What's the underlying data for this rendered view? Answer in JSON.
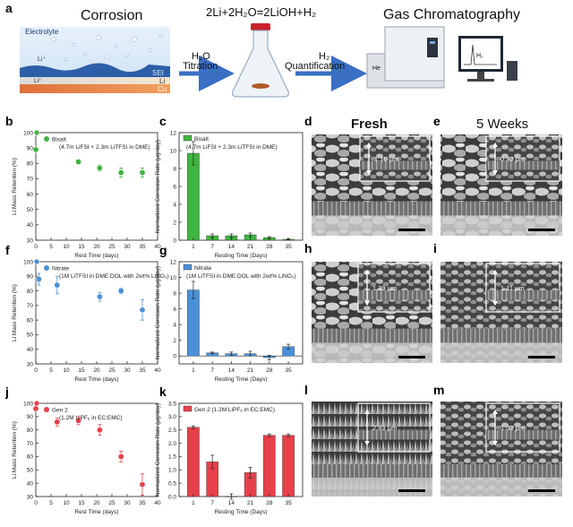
{
  "panel_labels": {
    "a": "a",
    "b": "b",
    "c": "c",
    "d": "d",
    "e": "e",
    "f": "f",
    "g": "g",
    "h": "h",
    "i": "i",
    "j": "j",
    "k": "k",
    "l": "l",
    "m": "m"
  },
  "schematic": {
    "corrosion_title": "Corrosion",
    "electrolyte": "Electrolyte",
    "li_ion": "Li⁺",
    "li0": "Li⁰",
    "sei": "SEI",
    "li": "Li",
    "cu": "Cu",
    "reaction": "2Li+2H₂O=2LiOH+H₂",
    "h2o": "H₂O",
    "titration": "Titration",
    "h2": "H₂",
    "quantification": "Quantification",
    "gc_title": "Gas Chromatography",
    "he": "He",
    "screen_h2": "H₂"
  },
  "sem": {
    "fresh": "Fresh",
    "five_weeks": "5 Weeks",
    "d_thickness": "1.16 μm",
    "e_thickness": "0.92 μm",
    "h_thickness": "1.39 μm",
    "i_thickness": "1.11 μm",
    "l_thickness": "2.93 μm",
    "m_thickness": "1.02 μm"
  },
  "colors": {
    "bisalt": "#3fb53f",
    "nitrate": "#4a90d9",
    "gen2": "#e8404a",
    "arrow": "#3a6fc4"
  },
  "chart_data": [
    {
      "id": "b",
      "type": "scatter",
      "legend": "Bisalt",
      "legend_sub": "(4.7m LiFSI + 2.3m LiTFSI in DME)",
      "xlabel": "Rest Time (days)",
      "ylabel": "Li Mass Retention (%)",
      "xlim": [
        0,
        40
      ],
      "ylim": [
        30,
        100
      ],
      "xticks": [
        "0",
        "5",
        "10",
        "15",
        "20",
        "25",
        "30",
        "35",
        "40"
      ],
      "yticks": [
        "30",
        "40",
        "50",
        "60",
        "70",
        "80",
        "90",
        "100"
      ],
      "x": [
        0,
        14,
        21,
        28,
        35
      ],
      "y": [
        89,
        81,
        77,
        74,
        74
      ],
      "err": [
        1,
        1,
        2,
        3,
        3
      ],
      "initial_point": 100
    },
    {
      "id": "c",
      "type": "bar",
      "legend": "Bisalt",
      "legend_sub": "(4.7m LiFSI + 2.3m LiTFSI in DME)",
      "xlabel": "Resting Time (Days)",
      "ylabel": "Normalized Corrosion Rate (μg/day)",
      "categories": [
        "1",
        "7",
        "14",
        "21",
        "28",
        "35"
      ],
      "values": [
        9.7,
        0.5,
        0.5,
        0.6,
        0.3,
        0.1
      ],
      "err": [
        1.3,
        0.2,
        0.2,
        0.2,
        0.1,
        0.05
      ],
      "ylim": [
        0,
        12
      ],
      "yticks": [
        "0",
        "2",
        "4",
        "6",
        "8",
        "10",
        "12"
      ]
    },
    {
      "id": "f",
      "type": "scatter",
      "legend": "Nitrate",
      "legend_sub": "(1M LiTFSI in DME:DOL with 2wt% LiNO₃)",
      "xlabel": "Rest Time (days)",
      "ylabel": "Li Mass Retention (%)",
      "xlim": [
        0,
        40
      ],
      "ylim": [
        30,
        100
      ],
      "xticks": [
        "0",
        "5",
        "10",
        "15",
        "20",
        "25",
        "30",
        "35",
        "40"
      ],
      "yticks": [
        "30",
        "40",
        "50",
        "60",
        "70",
        "80",
        "90",
        "100"
      ],
      "x": [
        1,
        7,
        21,
        28,
        35
      ],
      "y": [
        88,
        84,
        76,
        80,
        67
      ],
      "err": [
        4,
        6,
        3,
        2,
        7
      ],
      "initial_point": 100
    },
    {
      "id": "g",
      "type": "bar",
      "legend": "Nitrate",
      "legend_sub": "(1M LiTFSI in DME:DOL with 2wt% LiNO₃)",
      "xlabel": "Resting Time (Days)",
      "ylabel": "Normalized Corrosion Rate (μg/day)",
      "categories": [
        "1",
        "7",
        "14",
        "21",
        "28",
        "35"
      ],
      "values": [
        8.4,
        0.4,
        0.3,
        0.3,
        -0.2,
        1.2
      ],
      "err": [
        1.1,
        0.1,
        0.2,
        0.3,
        0.3,
        0.3
      ],
      "ylim": [
        -1,
        12
      ],
      "yticks": [
        "0",
        "2",
        "4",
        "6",
        "8",
        "10",
        "12"
      ]
    },
    {
      "id": "j",
      "type": "scatter",
      "legend": "Gen 2",
      "legend_sub": "(1.2M LiPF₆ in EC:EMC)",
      "xlabel": "Rest Time (days)",
      "ylabel": "Li Mass Retention (%)",
      "xlim": [
        0,
        40
      ],
      "ylim": [
        30,
        100
      ],
      "xticks": [
        "0",
        "5",
        "10",
        "15",
        "20",
        "25",
        "30",
        "35",
        "40"
      ],
      "yticks": [
        "30",
        "40",
        "50",
        "60",
        "70",
        "80",
        "90",
        "100"
      ],
      "x": [
        0,
        7,
        14,
        21,
        28,
        35
      ],
      "y": [
        96,
        86,
        87,
        80,
        60,
        39
      ],
      "err": [
        1,
        3,
        3,
        4,
        4,
        8
      ],
      "initial_point": 100
    },
    {
      "id": "k",
      "type": "bar",
      "legend": "Gen 2 (1.2M LiPF₆ in EC:EMC)",
      "xlabel": "Resting Time (Days)",
      "ylabel": "Normalized Corrosion Rate (μg/day)",
      "categories": [
        "1",
        "7",
        "14",
        "21",
        "28",
        "35"
      ],
      "values": [
        2.6,
        1.3,
        0.0,
        0.9,
        2.3,
        2.3
      ],
      "err": [
        0.05,
        0.25,
        0.1,
        0.2,
        0.05,
        0.05
      ],
      "ylim": [
        0,
        3.5
      ],
      "yticks": [
        "0.0",
        "0.5",
        "1.0",
        "1.5",
        "2.0",
        "2.5",
        "3.0",
        "3.5"
      ]
    }
  ]
}
